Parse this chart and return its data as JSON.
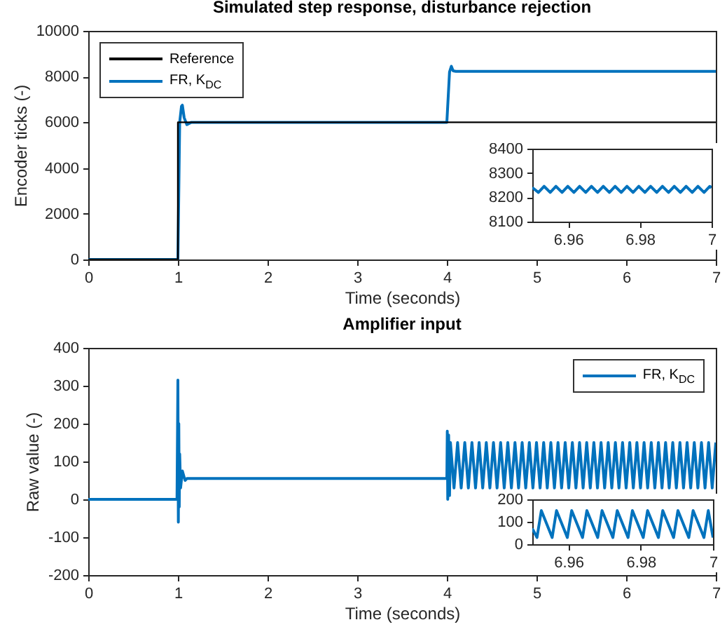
{
  "chart_data": [
    {
      "type": "line",
      "title": "Simulated step response, disturbance rejection",
      "xlabel": "Time (seconds)",
      "ylabel": "Encoder ticks (-)",
      "xlim": [
        0,
        7
      ],
      "xticks": [
        0,
        1,
        2,
        3,
        4,
        5,
        6,
        7
      ],
      "ylim": [
        0,
        10000
      ],
      "yticks": [
        0,
        2000,
        4000,
        6000,
        8000,
        10000
      ],
      "legend": "top left",
      "series": [
        {
          "name": "Reference",
          "color": "#000000",
          "x": [
            0,
            1,
            1,
            7
          ],
          "values": [
            0,
            0,
            6000,
            6000
          ]
        },
        {
          "name": "FR, K$_{DC}$",
          "color": "#0072bd",
          "x": [
            0,
            1,
            1.02,
            1.04,
            1.05,
            1.07,
            1.1,
            1.15,
            4,
            4.03,
            4.05,
            4.07,
            4.1,
            7
          ],
          "values": [
            0,
            0,
            6000,
            6700,
            6750,
            6200,
            5900,
            6000,
            6000,
            8200,
            8450,
            8250,
            8230,
            8230
          ]
        }
      ]
    },
    {
      "type": "line",
      "xlim": [
        6.95,
        7
      ],
      "xticks": [
        6.96,
        6.98,
        7
      ],
      "ylim": [
        8100,
        8400
      ],
      "yticks": [
        8100,
        8200,
        8300,
        8400
      ],
      "series": [
        {
          "color": "#0072bd",
          "x": [
            6.95,
            6.9517,
            6.9533,
            6.955,
            6.9566,
            6.9583,
            6.9599,
            6.9616,
            6.9632,
            6.9649,
            6.9665,
            6.9682,
            6.9698,
            6.9715,
            6.9731,
            6.9748,
            6.9764,
            6.9781,
            6.9797,
            6.9814,
            6.983,
            6.9847,
            6.9863,
            6.988,
            6.9896,
            6.9913,
            6.9929,
            6.9946,
            6.9962,
            6.9979,
            6.9995,
            7
          ],
          "values": [
            8240,
            8220,
            8245,
            8220,
            8245,
            8220,
            8245,
            8220,
            8245,
            8220,
            8245,
            8220,
            8245,
            8220,
            8245,
            8220,
            8245,
            8220,
            8245,
            8220,
            8245,
            8220,
            8245,
            8220,
            8245,
            8220,
            8245,
            8220,
            8245,
            8220,
            8245,
            8240
          ]
        }
      ]
    },
    {
      "type": "line",
      "title": "Amplifier input",
      "xlabel": "Time (seconds)",
      "ylabel": "Raw value (-)",
      "xlim": [
        0,
        7
      ],
      "xticks": [
        0,
        1,
        2,
        3,
        4,
        5,
        6,
        7
      ],
      "ylim": [
        -200,
        400
      ],
      "yticks": [
        -200,
        -100,
        0,
        100,
        200,
        300,
        400
      ],
      "legend": "top right",
      "series": [
        {
          "name": "FR, K$_{DC}$",
          "color": "#0072bd",
          "x": [
            0,
            0.99,
            1,
            1.005,
            1.01,
            1.015,
            1.02,
            1.03,
            1.05,
            1.08,
            1.1,
            4,
            4.005,
            4.01,
            4.02,
            4.03,
            4.04,
            4.08,
            4.12,
            4.16,
            4.2,
            4.24,
            4.28,
            4.32,
            4.36,
            4.4,
            4.44,
            4.48,
            4.52,
            4.56,
            4.6,
            4.64,
            4.68,
            4.72,
            4.76,
            4.8,
            4.84,
            4.88,
            4.92,
            4.96,
            5,
            5.04,
            5.08,
            5.12,
            5.16,
            5.2,
            5.24,
            5.28,
            5.32,
            5.36,
            5.4,
            5.44,
            5.48,
            5.52,
            5.56,
            5.6,
            5.64,
            5.68,
            5.72,
            5.76,
            5.8,
            5.84,
            5.88,
            5.92,
            5.96,
            6,
            6.04,
            6.08,
            6.12,
            6.16,
            6.2,
            6.24,
            6.28,
            6.32,
            6.36,
            6.4,
            6.44,
            6.48,
            6.52,
            6.56,
            6.6,
            6.64,
            6.68,
            6.72,
            6.76,
            6.8,
            6.84,
            6.88,
            6.92,
            6.96,
            7
          ],
          "values": [
            0,
            0,
            315,
            -60,
            200,
            -20,
            120,
            30,
            75,
            50,
            55,
            55,
            180,
            0,
            170,
            10,
            150,
            30,
            150,
            30,
            150,
            30,
            150,
            30,
            150,
            30,
            150,
            30,
            150,
            30,
            150,
            30,
            150,
            30,
            150,
            30,
            150,
            30,
            150,
            30,
            150,
            30,
            150,
            30,
            150,
            30,
            150,
            30,
            150,
            30,
            150,
            30,
            150,
            30,
            150,
            30,
            150,
            30,
            150,
            30,
            150,
            30,
            150,
            30,
            150,
            30,
            150,
            30,
            150,
            30,
            150,
            30,
            150,
            30,
            150,
            30,
            150,
            30,
            150,
            30,
            150,
            30,
            150,
            30,
            150,
            30,
            150,
            30,
            150,
            30,
            150
          ]
        }
      ]
    },
    {
      "type": "line",
      "xlim": [
        6.95,
        7
      ],
      "xticks": [
        6.96,
        6.98,
        7
      ],
      "ylim": [
        0,
        200
      ],
      "yticks": [
        0,
        100,
        200
      ],
      "series": [
        {
          "color": "#0072bd",
          "x": [
            6.95,
            6.9513,
            6.9525,
            6.9555,
            6.9567,
            6.9597,
            6.9609,
            6.9639,
            6.9651,
            6.9681,
            6.9693,
            6.9723,
            6.9735,
            6.9765,
            6.9777,
            6.9807,
            6.9819,
            6.9849,
            6.9861,
            6.9891,
            6.9903,
            6.9933,
            6.9945,
            6.9975,
            6.9987,
            7
          ],
          "values": [
            70,
            30,
            150,
            30,
            150,
            30,
            150,
            30,
            150,
            30,
            150,
            30,
            150,
            30,
            150,
            30,
            150,
            30,
            150,
            30,
            150,
            30,
            150,
            30,
            150,
            30
          ]
        }
      ]
    }
  ]
}
